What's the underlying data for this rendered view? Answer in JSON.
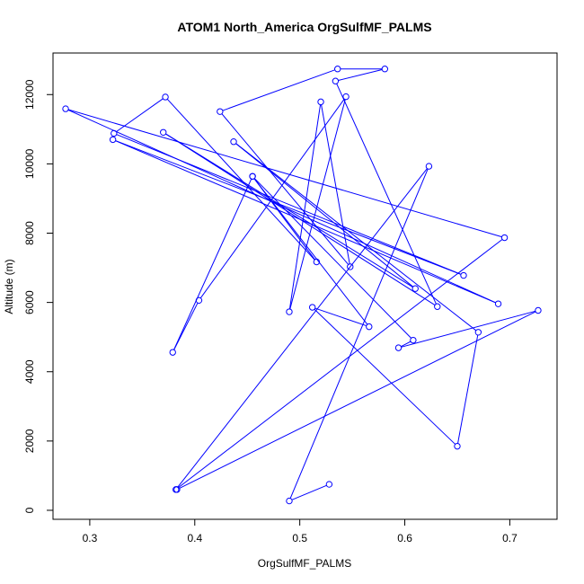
{
  "chart_data": {
    "type": "line",
    "title": "ATOM1 North_America OrgSulfMF_PALMS",
    "xlabel": "OrgSulfMF_PALMS",
    "ylabel": "Altitude (m)",
    "xlim": [
      0.265,
      0.745
    ],
    "ylim": [
      -260,
      13200
    ],
    "x_ticks": [
      0.3,
      0.4,
      0.5,
      0.6,
      0.7
    ],
    "x_tick_labels": [
      "0.3",
      "0.4",
      "0.5",
      "0.6",
      "0.7"
    ],
    "y_ticks": [
      0,
      2000,
      4000,
      6000,
      8000,
      10000,
      12000
    ],
    "y_tick_labels": [
      "0",
      "2000",
      "4000",
      "6000",
      "8000",
      "10000",
      "12000"
    ],
    "grid": false,
    "legend": "none",
    "marker": "open-circle",
    "series": [
      {
        "color": "#0000ff",
        "x": [
          0.528,
          0.49,
          0.623,
          0.382,
          0.695,
          0.277,
          0.689,
          0.322,
          0.656,
          0.323,
          0.372,
          0.516,
          0.455,
          0.379,
          0.404,
          0.544,
          0.49,
          0.52,
          0.548,
          0.424,
          0.536,
          0.581,
          0.534,
          0.631,
          0.37,
          0.61,
          0.437,
          0.67,
          0.65,
          0.512,
          0.566,
          0.455,
          0.608,
          0.594,
          0.727,
          0.383
        ],
        "y": [
          750,
          270,
          9930,
          600,
          7870,
          11590,
          5960,
          10700,
          6780,
          10880,
          11930,
          7170,
          9640,
          4560,
          6060,
          11940,
          5730,
          11790,
          7030,
          11510,
          12740,
          12740,
          12390,
          5880,
          10910,
          6400,
          10640,
          5140,
          1850,
          5860,
          5300,
          9640,
          4910,
          4690,
          5770,
          600
        ]
      }
    ]
  }
}
